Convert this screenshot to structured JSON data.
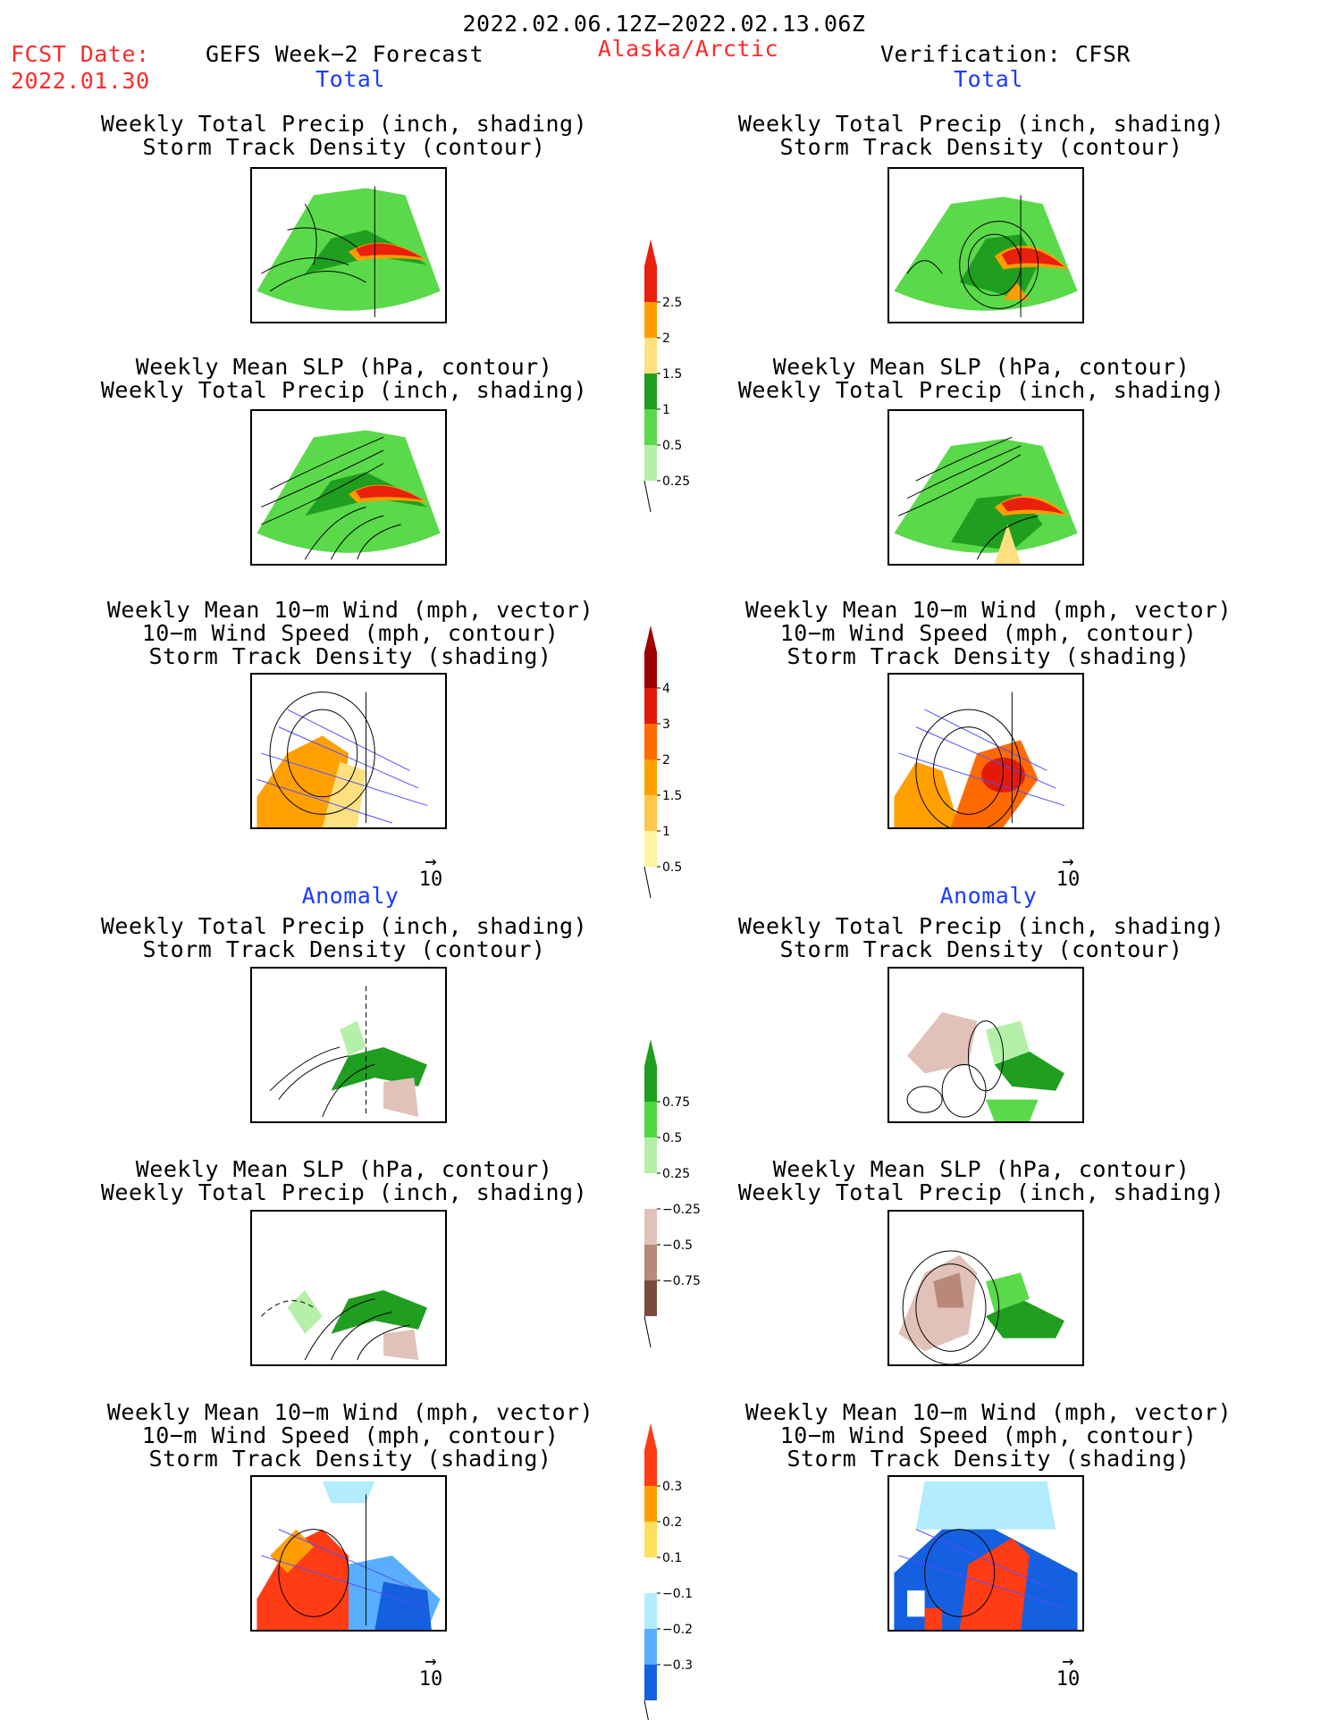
{
  "header": {
    "date_range": "2022.02.06.12Z−2022.02.13.06Z",
    "fcst_date_label": "FCST Date:",
    "fcst_date_value": "2022.01.30",
    "left_title": "GEFS Week−2 Forecast",
    "region": "Alaska/Arctic",
    "right_title": "Verification: CFSR"
  },
  "sections": {
    "total": "Total",
    "anomaly": "Anomaly"
  },
  "panel_titles": {
    "precip_storm": "Weekly Total Precip (inch, shading)\nStorm Track Density (contour)",
    "slp_precip": "Weekly Mean SLP (hPa, contour)\nWeekly Total Precip (inch, shading)",
    "wind_storm": "Weekly Mean 10−m Wind (mph, vector)\n10−m Wind Speed (mph, contour)\nStorm Track Density (shading)"
  },
  "vector_reference": "10",
  "colorbars": [
    {
      "id": "precip_total",
      "labels": [
        "2.5",
        "2",
        "1.5",
        "1",
        "0.5",
        "0.25"
      ],
      "colors": [
        "#e8200c",
        "#ff9c00",
        "#ffe080",
        "#1f9e1f",
        "#5ad94a",
        "#b4f0a8"
      ]
    },
    {
      "id": "storm_total",
      "labels": [
        "4",
        "3",
        "2",
        "1.5",
        "1",
        "0.5"
      ],
      "colors": [
        "#a00000",
        "#e11a0a",
        "#ff6a00",
        "#ffa000",
        "#ffc84a",
        "#fff4a0"
      ]
    },
    {
      "id": "precip_anom",
      "labels": [
        "0.75",
        "0.5",
        "0.25",
        "−0.25",
        "−0.5",
        "−0.75"
      ],
      "colors": [
        "#1f9e1f",
        "#4ed840",
        "#b4f0a8",
        "#ffffff",
        "#e0c2b8",
        "#b88878",
        "#7a4a3a"
      ]
    },
    {
      "id": "storm_anom",
      "labels": [
        "0.3",
        "0.2",
        "0.1",
        "−0.1",
        "−0.2",
        "−0.3"
      ],
      "colors": [
        "#ff3c14",
        "#ff9c00",
        "#ffe060",
        "#ffffff",
        "#b4ecff",
        "#5aaeff",
        "#1460e0"
      ]
    }
  ]
}
